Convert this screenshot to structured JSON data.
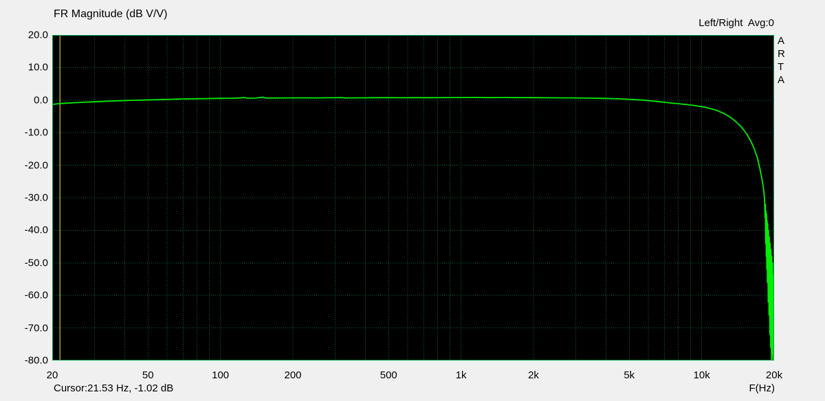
{
  "header": {
    "title": "FR Magnitude (dB V/V)",
    "channel_info": "Left/Right  Avg:0"
  },
  "watermark": "ARTA",
  "status": {
    "cursor_text": "Cursor:21.53 Hz, -1.02 dB",
    "xaxis_label": "F(Hz)"
  },
  "chart_data": {
    "type": "line",
    "title": "FR Magnitude (dB V/V)",
    "xlabel": "F(Hz)",
    "ylabel": "dB",
    "x_scale": "log",
    "x_range": [
      20,
      20000
    ],
    "y_range": [
      -80,
      20
    ],
    "grid": "on",
    "cursor_hz": 21.53,
    "cursor_db": -1.02,
    "colors": {
      "window_bg": "#f0f0f0",
      "plot_bg": "#000000",
      "grid": "#0b6e36",
      "border": "#00a34f",
      "curve": "#00ee00",
      "cursor": "#a8a428",
      "text": "#000000"
    },
    "y_ticks": [
      {
        "value": 20,
        "label": "20.0"
      },
      {
        "value": 10,
        "label": "10.0"
      },
      {
        "value": 0,
        "label": "0.0"
      },
      {
        "value": -10,
        "label": "-10.0"
      },
      {
        "value": -20,
        "label": "-20.0"
      },
      {
        "value": -30,
        "label": "-30.0"
      },
      {
        "value": -40,
        "label": "-40.0"
      },
      {
        "value": -50,
        "label": "-50.0"
      },
      {
        "value": -60,
        "label": "-60.0"
      },
      {
        "value": -70,
        "label": "-70.0"
      },
      {
        "value": -80,
        "label": "-80.0"
      }
    ],
    "x_ticks": [
      {
        "value": 20,
        "label": "20"
      },
      {
        "value": 50,
        "label": "50"
      },
      {
        "value": 100,
        "label": "100"
      },
      {
        "value": 200,
        "label": "200"
      },
      {
        "value": 500,
        "label": "500"
      },
      {
        "value": 1000,
        "label": "1k"
      },
      {
        "value": 2000,
        "label": "2k"
      },
      {
        "value": 5000,
        "label": "5k"
      },
      {
        "value": 10000,
        "label": "10k"
      },
      {
        "value": 20000,
        "label": "20k"
      }
    ],
    "grid_x_values": [
      30,
      40,
      50,
      60,
      70,
      80,
      90,
      100,
      200,
      300,
      400,
      500,
      600,
      700,
      800,
      900,
      1000,
      2000,
      3000,
      4000,
      5000,
      6000,
      7000,
      8000,
      9000,
      10000
    ],
    "grid_y_values": [
      10,
      0,
      -10,
      -20,
      -30,
      -40,
      -50,
      -60,
      -70
    ],
    "series": [
      {
        "name": "Left/Right averaged frequency response",
        "points": [
          [
            20,
            -1.3
          ],
          [
            21.53,
            -1.05
          ],
          [
            24,
            -0.85
          ],
          [
            27,
            -0.65
          ],
          [
            30,
            -0.5
          ],
          [
            34,
            -0.33
          ],
          [
            38,
            -0.2
          ],
          [
            43,
            -0.07
          ],
          [
            48,
            0.03
          ],
          [
            55,
            0.15
          ],
          [
            62,
            0.25
          ],
          [
            70,
            0.35
          ],
          [
            80,
            0.42
          ],
          [
            90,
            0.48
          ],
          [
            100,
            0.55
          ],
          [
            110,
            0.58
          ],
          [
            120,
            0.65
          ],
          [
            125,
            0.8
          ],
          [
            130,
            0.6
          ],
          [
            140,
            0.62
          ],
          [
            150,
            0.9
          ],
          [
            155,
            0.62
          ],
          [
            170,
            0.65
          ],
          [
            190,
            0.68
          ],
          [
            220,
            0.7
          ],
          [
            250,
            0.68
          ],
          [
            280,
            0.72
          ],
          [
            320,
            0.78
          ],
          [
            330,
            0.65
          ],
          [
            380,
            0.7
          ],
          [
            430,
            0.74
          ],
          [
            500,
            0.78
          ],
          [
            570,
            0.72
          ],
          [
            650,
            0.76
          ],
          [
            750,
            0.74
          ],
          [
            850,
            0.78
          ],
          [
            1000,
            0.8
          ],
          [
            1150,
            0.82
          ],
          [
            1300,
            0.76
          ],
          [
            1500,
            0.8
          ],
          [
            1700,
            0.76
          ],
          [
            2000,
            0.75
          ],
          [
            2300,
            0.72
          ],
          [
            2600,
            0.7
          ],
          [
            3000,
            0.68
          ],
          [
            3400,
            0.62
          ],
          [
            3800,
            0.55
          ],
          [
            4200,
            0.48
          ],
          [
            4600,
            0.38
          ],
          [
            5000,
            0.25
          ],
          [
            5400,
            0.1
          ],
          [
            5700,
            0.0
          ],
          [
            6000,
            -0.15
          ],
          [
            6500,
            -0.4
          ],
          [
            7000,
            -0.65
          ],
          [
            7500,
            -0.9
          ],
          [
            8000,
            -1.1
          ],
          [
            8500,
            -1.3
          ],
          [
            9000,
            -1.5
          ],
          [
            9500,
            -1.75
          ],
          [
            10000,
            -2.0
          ],
          [
            10500,
            -2.3
          ],
          [
            11000,
            -2.7
          ],
          [
            11500,
            -3.1
          ],
          [
            12000,
            -3.7
          ],
          [
            12500,
            -4.3
          ],
          [
            13000,
            -5.0
          ],
          [
            13500,
            -5.9
          ],
          [
            14000,
            -6.9
          ],
          [
            14500,
            -8.0
          ],
          [
            15000,
            -9.3
          ],
          [
            15500,
            -10.8
          ],
          [
            16000,
            -12.6
          ],
          [
            16500,
            -14.8
          ],
          [
            17000,
            -17.5
          ],
          [
            17400,
            -20.5
          ],
          [
            17800,
            -24.2
          ],
          [
            18100,
            -27.5
          ],
          [
            18250,
            -30.5
          ],
          [
            18350,
            -36
          ],
          [
            18400,
            -32
          ],
          [
            18450,
            -44
          ],
          [
            18500,
            -34
          ],
          [
            18550,
            -48
          ],
          [
            18600,
            -35
          ],
          [
            18650,
            -52
          ],
          [
            18700,
            -37
          ],
          [
            18750,
            -56
          ],
          [
            18800,
            -38
          ],
          [
            18850,
            -50
          ],
          [
            18900,
            -62
          ],
          [
            18950,
            -40
          ],
          [
            19000,
            -54
          ],
          [
            19050,
            -66
          ],
          [
            19100,
            -42
          ],
          [
            19150,
            -58
          ],
          [
            19200,
            -72
          ],
          [
            19250,
            -44
          ],
          [
            19300,
            -62
          ],
          [
            19350,
            -76
          ],
          [
            19400,
            -46
          ],
          [
            19450,
            -66
          ],
          [
            19500,
            -80
          ],
          [
            19550,
            -48
          ],
          [
            19600,
            -70
          ],
          [
            19650,
            -78
          ],
          [
            19700,
            -50
          ],
          [
            19750,
            -74
          ],
          [
            19800,
            -80
          ],
          [
            19850,
            -54
          ],
          [
            19900,
            -78
          ],
          [
            19950,
            -58
          ],
          [
            20000,
            -80
          ]
        ]
      }
    ]
  }
}
